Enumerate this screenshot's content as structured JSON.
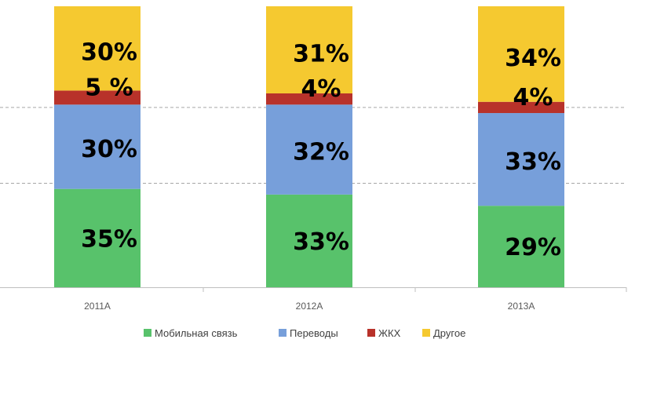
{
  "chart_data": {
    "type": "bar",
    "stacked": true,
    "percent_stacked": true,
    "categories": [
      "2011A",
      "2012A",
      "2013A"
    ],
    "series": [
      {
        "name": "Мобильная связь",
        "color": "#58c26b",
        "values": [
          35,
          33,
          29
        ],
        "labels": [
          "35%",
          "33%",
          "29%"
        ]
      },
      {
        "name": "Переводы",
        "color": "#779fda",
        "values": [
          30,
          32,
          33
        ],
        "labels": [
          "30%",
          "32%",
          "33%"
        ]
      },
      {
        "name": "ЖКХ",
        "color": "#b8322a",
        "values": [
          5,
          4,
          4
        ],
        "labels": [
          "5 %",
          "4%",
          "4%"
        ]
      },
      {
        "name": "Другое",
        "color": "#f5c930",
        "values": [
          30,
          31,
          34
        ],
        "labels": [
          "30%",
          "31%",
          "34%"
        ]
      }
    ],
    "ylim": [
      0,
      100
    ],
    "gridlines": "dashed",
    "legend_position": "bottom",
    "title": "",
    "xlabel": "",
    "ylabel": ""
  }
}
